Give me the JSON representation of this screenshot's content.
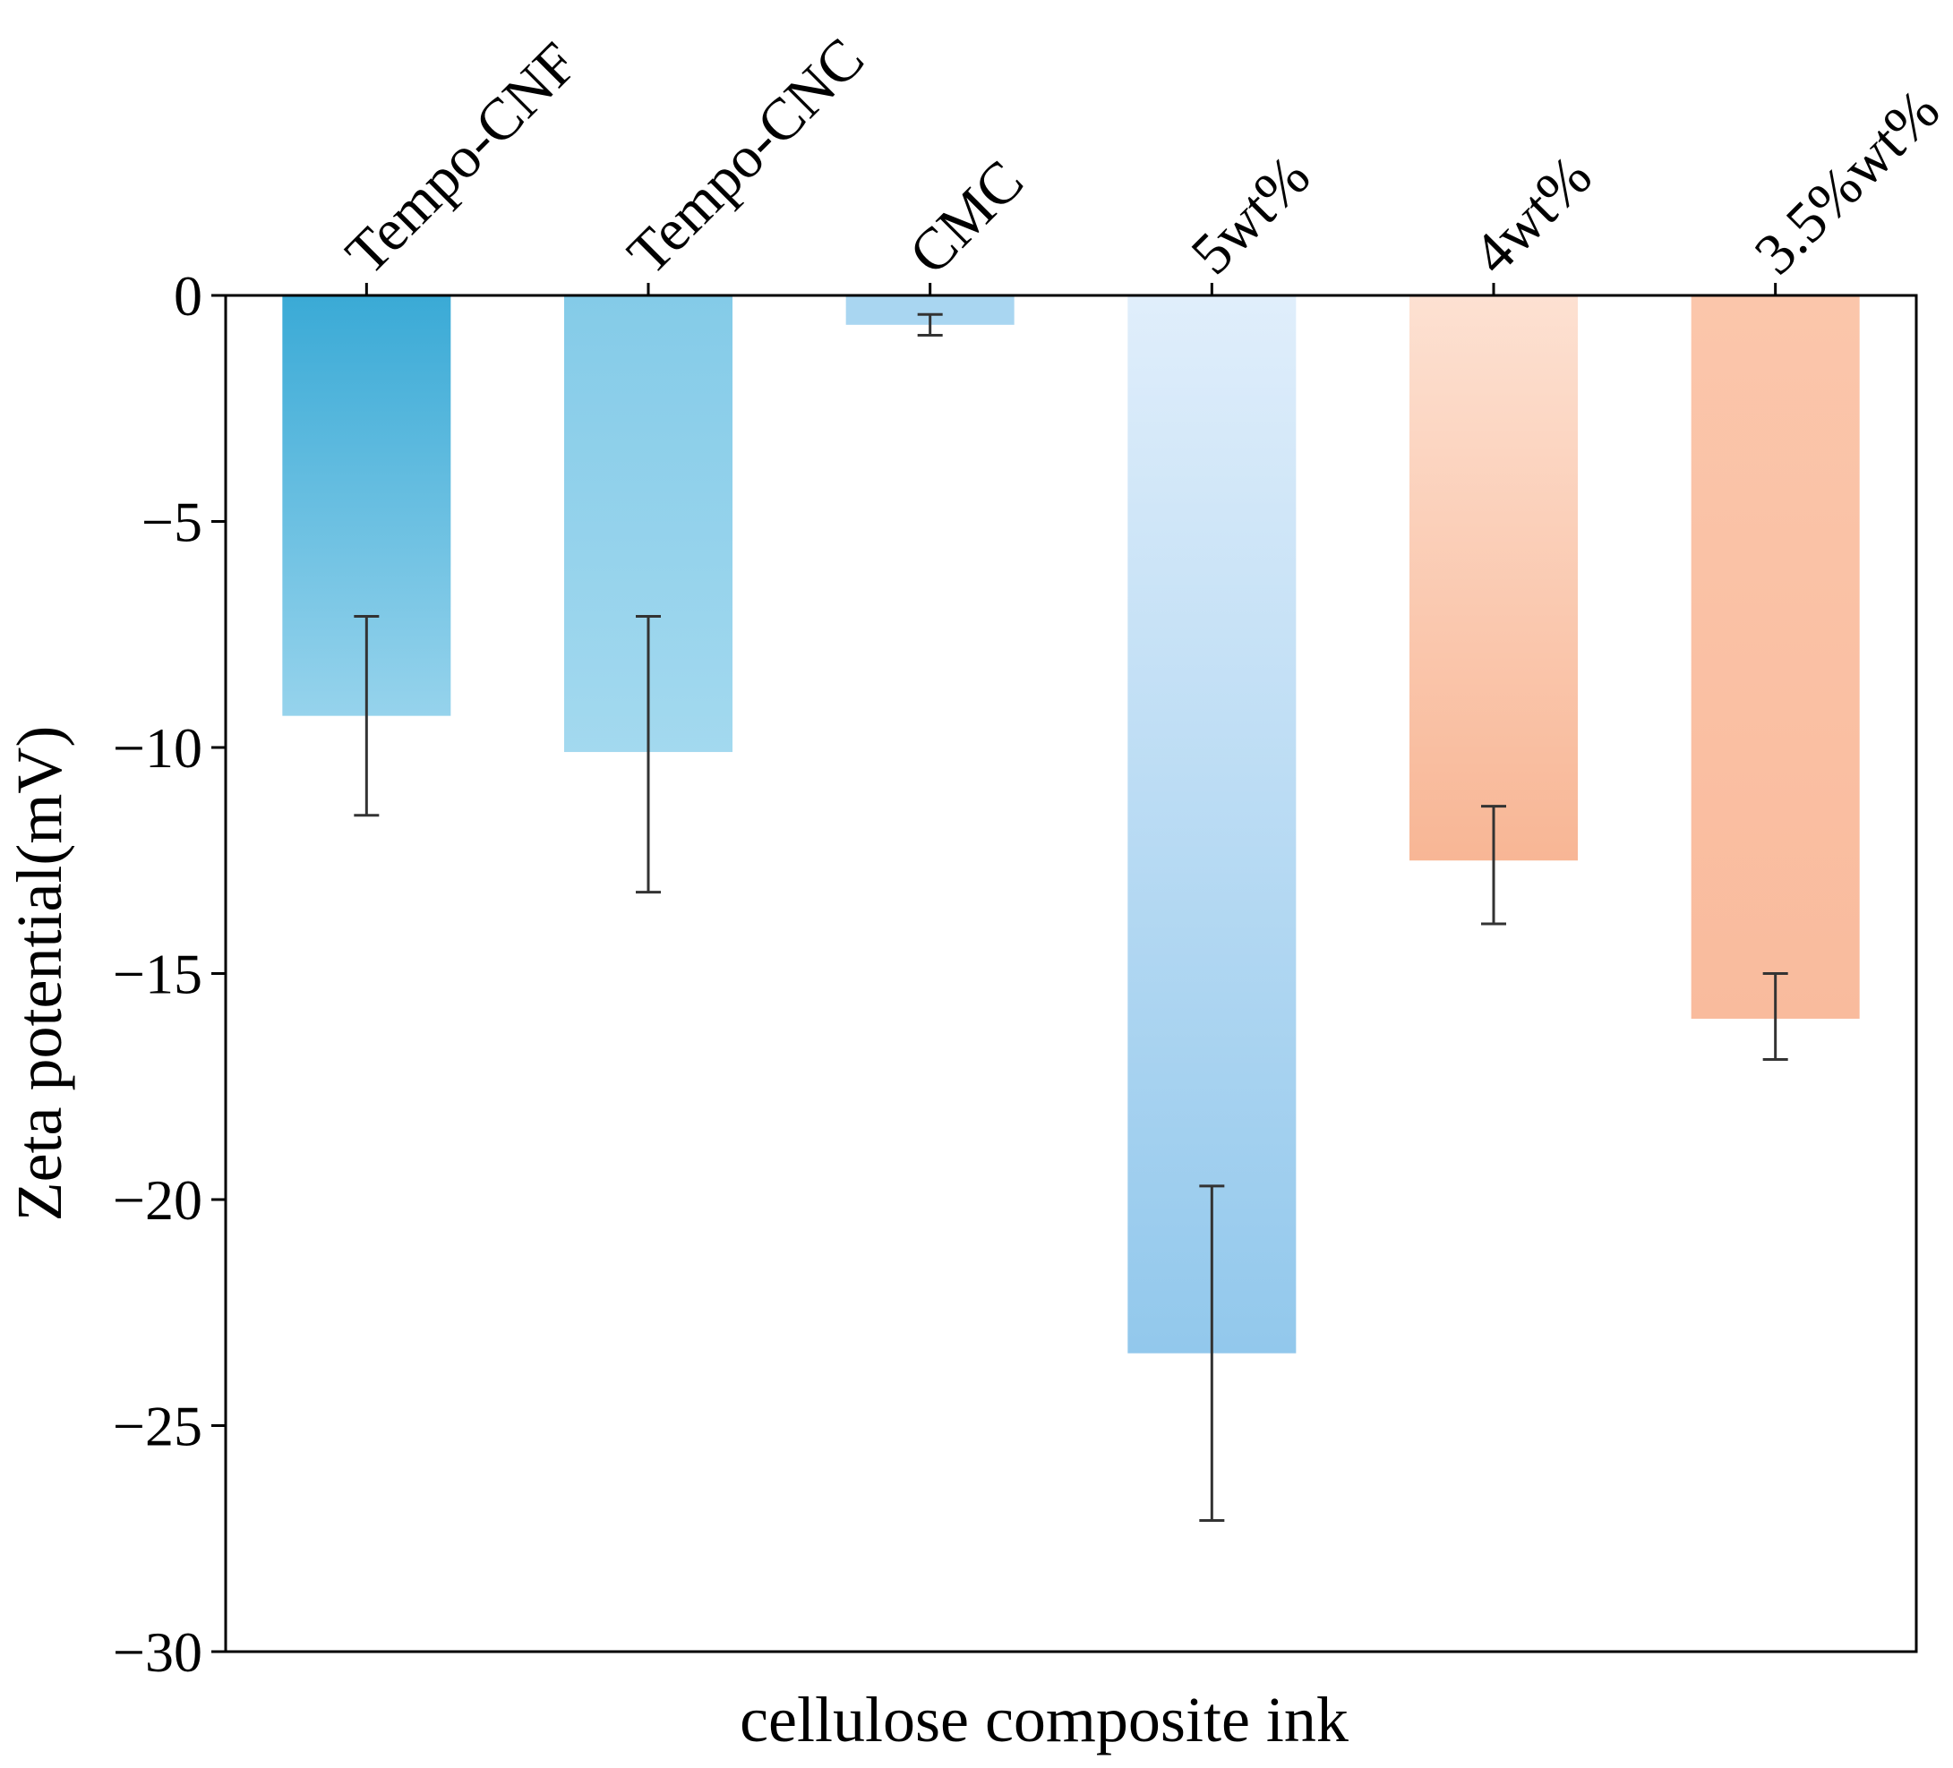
{
  "chart_data": {
    "type": "bar",
    "title": "",
    "xlabel": "cellulose composite ink",
    "ylabel": "Zeta potential(mV)",
    "ylim": [
      -30,
      0
    ],
    "yticks": [
      0,
      -5,
      -10,
      -15,
      -20,
      -25,
      -30
    ],
    "ytick_labels": [
      "0",
      "−5",
      "−10",
      "−15",
      "−20",
      "−25",
      "−30"
    ],
    "categories": [
      "Tempo-CNF",
      "Tempo-CNC",
      "CMC",
      "5wt%",
      "4wt%",
      "3.5%wt%"
    ],
    "values": [
      -9.3,
      -10.1,
      -0.65,
      -23.4,
      -12.5,
      -16.0
    ],
    "error_bars": [
      {
        "upper": -7.1,
        "lower": -11.5
      },
      {
        "upper": -7.1,
        "lower": -13.2
      },
      {
        "upper": -0.42,
        "lower": -0.88
      },
      {
        "upper": -19.7,
        "lower": -27.1
      },
      {
        "upper": -11.3,
        "lower": -13.9
      },
      {
        "upper": -15.0,
        "lower": -16.9
      }
    ],
    "bar_colors": [
      {
        "top": "#3aaad6",
        "bottom": "#96d3ec"
      },
      {
        "top": "#84cbe8",
        "bottom": "#a3d9ef"
      },
      {
        "top": "#a9d6f1",
        "bottom": "#a9d6f1"
      },
      {
        "top": "#e0eefb",
        "bottom": "#92c8ec"
      },
      {
        "top": "#fde1d2",
        "bottom": "#f8b695"
      },
      {
        "top": "#fbc6ab",
        "bottom": "#f9bb9d"
      }
    ],
    "tick_label_position": "top",
    "category_label_rotation": "rotated -45",
    "grid": false,
    "legend": "none"
  }
}
